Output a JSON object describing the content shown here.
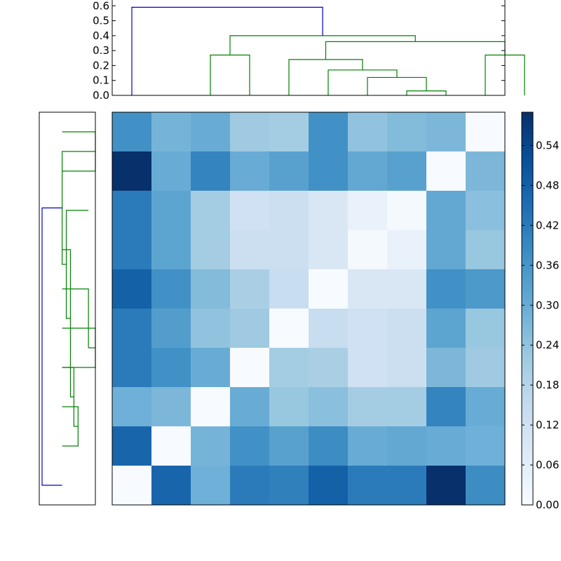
{
  "chart_data": [
    {
      "type": "dendrogram",
      "orientation": "top",
      "ylim": [
        0,
        0.62
      ],
      "yticks": [
        "0.0",
        "0.1",
        "0.2",
        "0.3",
        "0.4",
        "0.5",
        "0.6"
      ],
      "leaf_count": 10,
      "colors": {
        "above_threshold": "#0000cc",
        "cluster": "#008000"
      },
      "links": [
        {
          "a": 8.0,
          "b": 9.0,
          "h": 0.03,
          "ha": 0.0,
          "hb": 0.0,
          "c": "cluster"
        },
        {
          "a": 7.0,
          "b": 8.5,
          "h": 0.12,
          "ha": 0.0,
          "hb": 0.03,
          "c": "cluster"
        },
        {
          "a": 6.0,
          "b": 7.75,
          "h": 0.17,
          "ha": 0.0,
          "hb": 0.12,
          "c": "cluster"
        },
        {
          "a": 5.0,
          "b": 6.875,
          "h": 0.24,
          "ha": 0.0,
          "hb": 0.17,
          "c": "cluster"
        },
        {
          "a": 10.0,
          "b": 11.0,
          "h": 0.27,
          "ha": 0.0,
          "hb": 0.0,
          "c": "cluster"
        },
        {
          "a": 5.9375,
          "b": 10.5,
          "h": 0.36,
          "ha": 0.24,
          "hb": 0.27,
          "c": "cluster"
        },
        {
          "a": 3.0,
          "b": 4.0,
          "h": 0.27,
          "ha": 0.0,
          "hb": 0.0,
          "c": "cluster"
        },
        {
          "a": 3.5,
          "b": 8.21875,
          "h": 0.4,
          "ha": 0.27,
          "hb": 0.36,
          "c": "cluster"
        },
        {
          "a": 1.0,
          "b": 5.859375,
          "h": 0.59,
          "ha": 0.0,
          "hb": 0.4,
          "c": "above_threshold"
        }
      ]
    },
    {
      "type": "dendrogram",
      "orientation": "left",
      "leaf_count": 10,
      "colors": {
        "above_threshold": "#0000cc",
        "cluster": "#008000"
      },
      "links": [
        {
          "a": 1.0,
          "b": 2.0,
          "h": 0.48,
          "ha": 0.0,
          "hb": 0.0,
          "c": "cluster"
        },
        {
          "a": 6.0,
          "b": 7.0,
          "h": 0.48,
          "ha": 0.0,
          "hb": 0.0,
          "c": "cluster"
        },
        {
          "a": 5.0,
          "b": 6.5,
          "h": 0.38,
          "ha": 0.0,
          "hb": 0.48,
          "c": "cluster"
        },
        {
          "a": 8.0,
          "b": 9.0,
          "h": 0.23,
          "ha": 0.0,
          "hb": 0.0,
          "c": "cluster"
        },
        {
          "a": 7.0,
          "b": 8.5,
          "h": 0.17,
          "ha": 0.0,
          "hb": 0.23,
          "c": "cluster"
        },
        {
          "a": 4.0,
          "b": 7.75,
          "h": 0.12,
          "ha": 0.0,
          "hb": 0.17,
          "c": "cluster"
        },
        {
          "a": 3.0,
          "b": 5.75,
          "h": 0.06,
          "ha": 0.38,
          "hb": 0.12,
          "c": "cluster"
        },
        {
          "a": 4.375,
          "b": 1.5,
          "h": 0.0,
          "ha": 0.06,
          "hb": 0.48,
          "c": "cluster"
        },
        {
          "a": 2.9375,
          "b": 10.0,
          "h": -0.29,
          "ha": 0.0,
          "hb": 0.0,
          "c": "above_threshold"
        }
      ]
    },
    {
      "type": "heatmap",
      "rows": 10,
      "cols": 10,
      "vmin": 0.0,
      "vmax": 0.59,
      "colormap": [
        "#f7fbff",
        "#deebf7",
        "#c6dbef",
        "#9ecae1",
        "#6baed6",
        "#4292c6",
        "#2171b5",
        "#08519c",
        "#08306b"
      ],
      "values": [
        [
          0.37,
          0.28,
          0.3,
          0.22,
          0.21,
          0.37,
          0.24,
          0.26,
          0.27,
          0.0
        ],
        [
          0.59,
          0.3,
          0.4,
          0.3,
          0.33,
          0.37,
          0.31,
          0.33,
          0.0,
          0.27
        ],
        [
          0.42,
          0.32,
          0.21,
          0.12,
          0.13,
          0.09,
          0.04,
          0.01,
          0.31,
          0.25
        ],
        [
          0.42,
          0.32,
          0.21,
          0.13,
          0.13,
          0.09,
          0.01,
          0.04,
          0.31,
          0.23
        ],
        [
          0.48,
          0.37,
          0.26,
          0.2,
          0.14,
          0.0,
          0.09,
          0.09,
          0.37,
          0.35
        ],
        [
          0.42,
          0.34,
          0.24,
          0.22,
          0.0,
          0.14,
          0.12,
          0.13,
          0.32,
          0.23
        ],
        [
          0.42,
          0.37,
          0.3,
          0.0,
          0.21,
          0.2,
          0.12,
          0.13,
          0.27,
          0.22
        ],
        [
          0.29,
          0.27,
          0.0,
          0.3,
          0.23,
          0.25,
          0.21,
          0.21,
          0.4,
          0.3
        ],
        [
          0.47,
          0.0,
          0.28,
          0.37,
          0.33,
          0.38,
          0.3,
          0.31,
          0.3,
          0.29
        ],
        [
          0.0,
          0.47,
          0.29,
          0.42,
          0.41,
          0.48,
          0.42,
          0.42,
          0.59,
          0.38
        ]
      ]
    },
    {
      "type": "colorbar",
      "vmin": 0.0,
      "vmax": 0.59,
      "ticks": [
        0.0,
        0.06,
        0.12,
        0.18,
        0.24,
        0.3,
        0.36,
        0.42,
        0.48,
        0.54
      ],
      "tick_labels": [
        "0.00",
        "0.06",
        "0.12",
        "0.18",
        "0.24",
        "0.30",
        "0.36",
        "0.42",
        "0.48",
        "0.54"
      ]
    }
  ]
}
